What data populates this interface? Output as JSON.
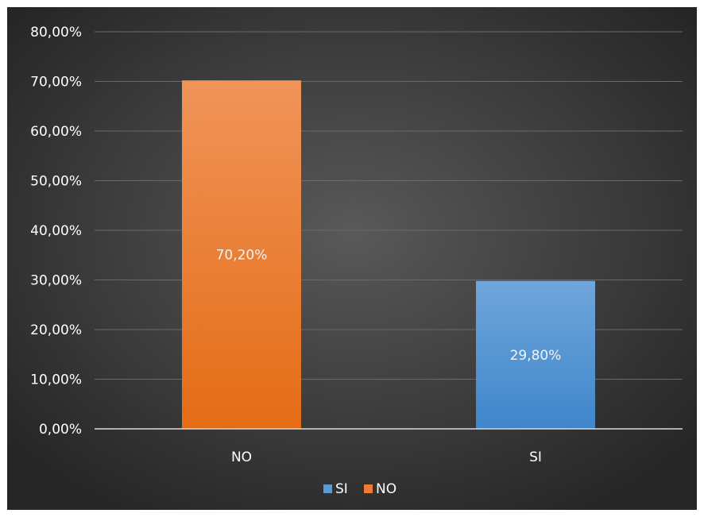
{
  "chart_data": {
    "type": "bar",
    "title": "",
    "xlabel": "",
    "ylabel": "",
    "categories": [
      "NO",
      "SI"
    ],
    "values": [
      70.2,
      29.8
    ],
    "value_labels": [
      "70,20%",
      "29,80%"
    ],
    "point_colors": [
      "#ED7D31",
      "#5B9BD5"
    ],
    "ylim": [
      0,
      80
    ],
    "yticks": [
      0,
      10,
      20,
      30,
      40,
      50,
      60,
      70,
      80
    ],
    "ytick_labels": [
      "0,00%",
      "10,00%",
      "20,00%",
      "30,00%",
      "40,00%",
      "50,00%",
      "60,00%",
      "70,00%",
      "80,00%"
    ],
    "grid": true,
    "legend": {
      "position": "bottom",
      "entries": [
        {
          "label": "SI",
          "color": "#5B9BD5"
        },
        {
          "label": "NO",
          "color": "#ED7D31"
        }
      ]
    }
  }
}
